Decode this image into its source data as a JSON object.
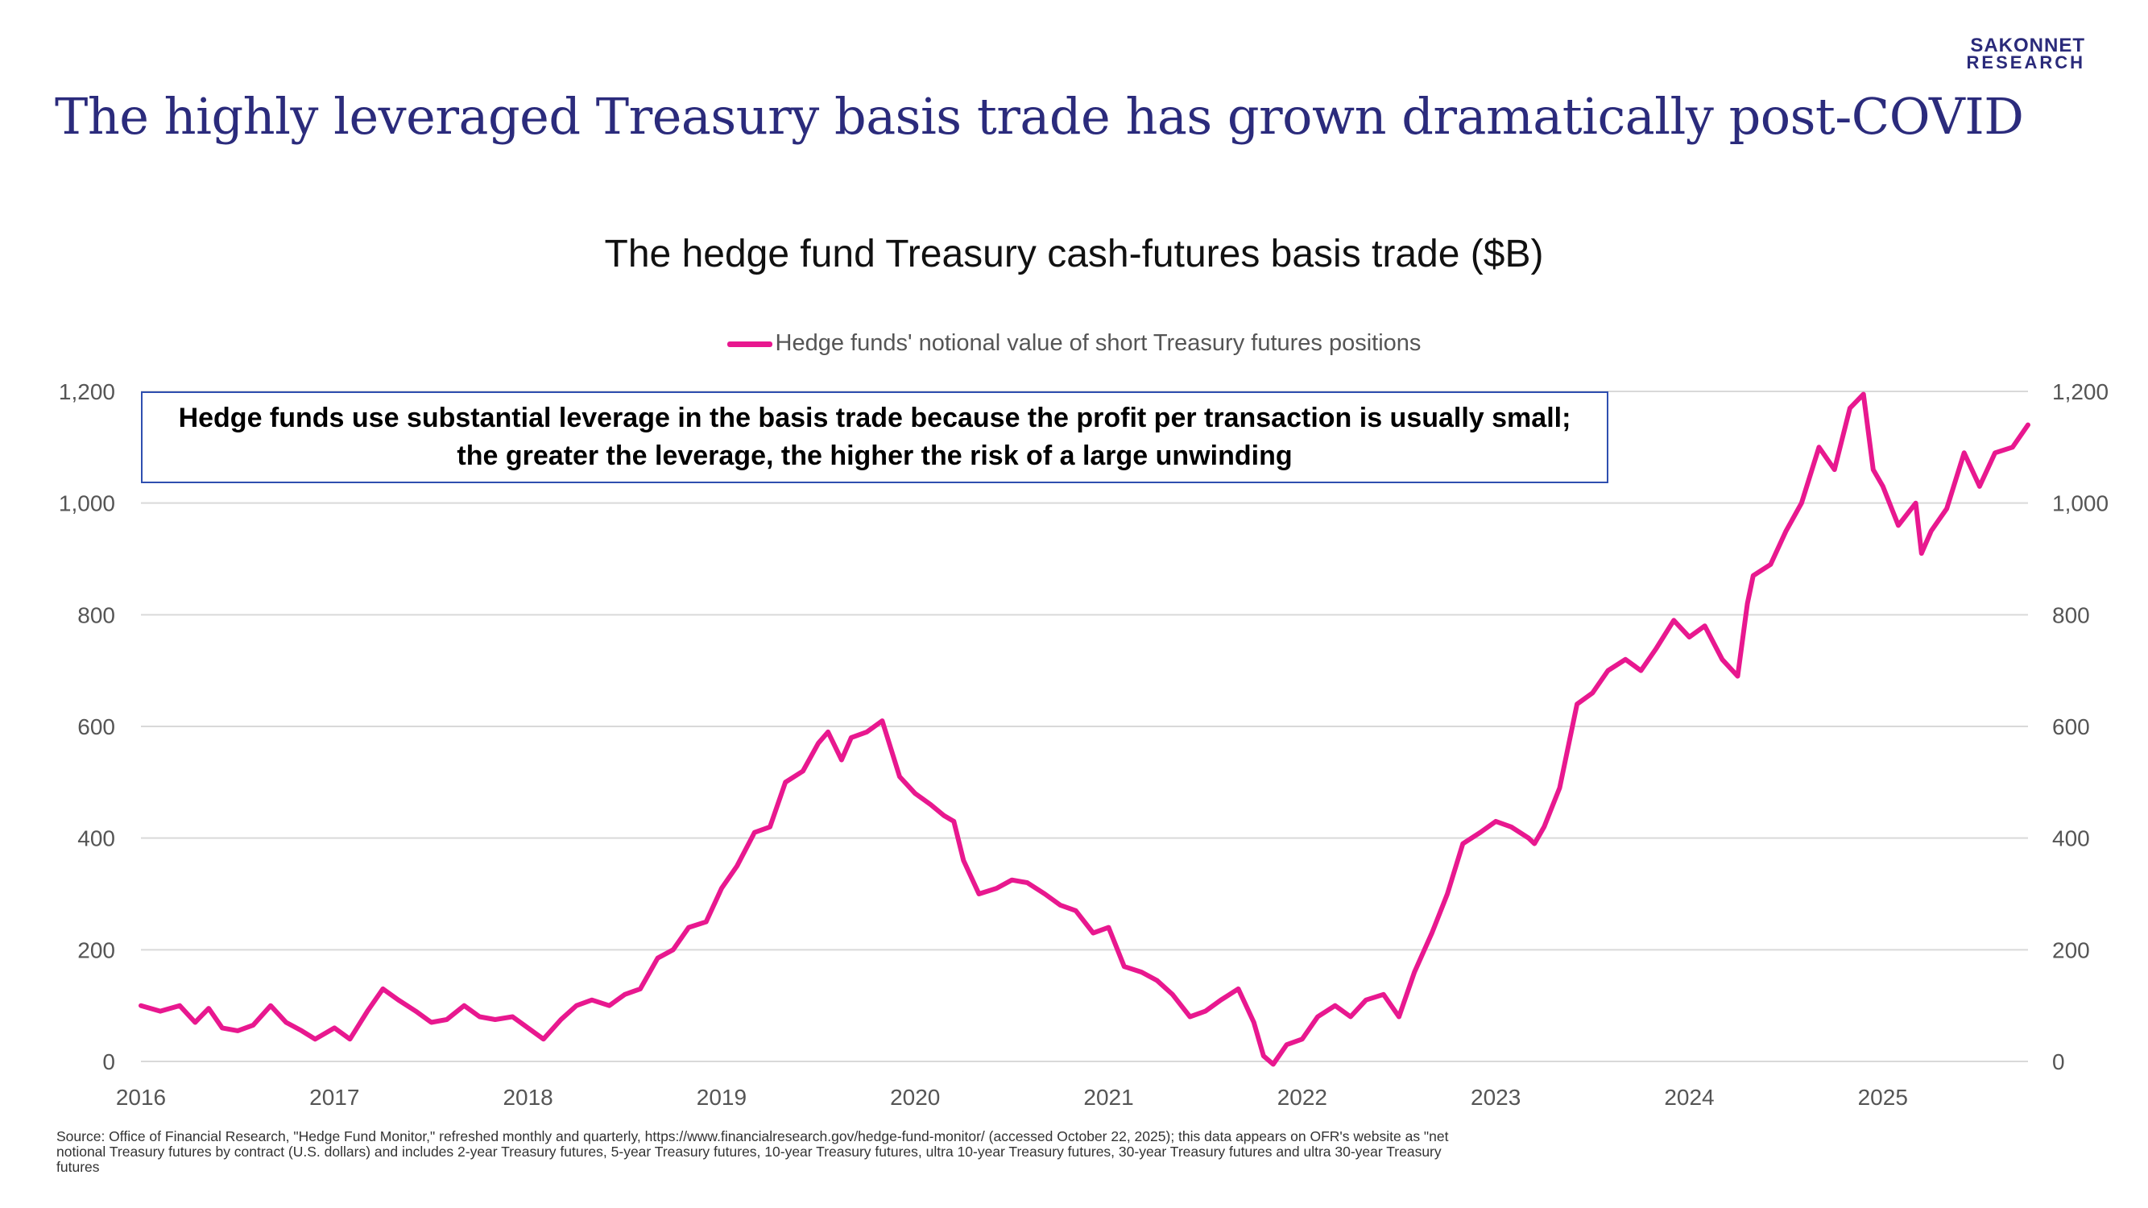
{
  "logo": {
    "line1": "SAKONNET",
    "line2": "RESEARCH"
  },
  "slide_title": "The highly leveraged Treasury basis trade has grown dramatically post-COVID",
  "callout": "Hedge funds use substantial leverage in the basis trade because the profit per transaction is usually small; the greater the leverage, the higher the risk of a large unwinding",
  "source": "Source: Office of Financial Research, \"Hedge Fund Monitor,\" refreshed monthly and quarterly, https://www.financialresearch.gov/hedge-fund-monitor/ (accessed October 22, 2025); this data appears on OFR's website as \"net notional Treasury futures by contract (U.S. dollars) and includes 2-year Treasury futures, 5-year Treasury futures, 10-year Treasury futures, ultra 10-year Treasury futures, 30-year Treasury futures and ultra 30-year Treasury futures",
  "colors": {
    "series": "#e8188f",
    "title": "#2b2b7c",
    "callout_border": "#2f4fb0",
    "grid": "#d9d9d9"
  },
  "chart_data": {
    "type": "line",
    "title": "The hedge fund Treasury cash-futures basis trade ($B)",
    "legend": "Hedge funds' notional value of short Treasury futures positions",
    "xlabel": "",
    "ylabel": "",
    "xlim": [
      2016.0,
      2025.75
    ],
    "ylim": [
      0,
      1200
    ],
    "y_ticks": [
      0,
      200,
      400,
      600,
      800,
      1000,
      1200
    ],
    "y_tick_labels": [
      "0",
      "200",
      "400",
      "600",
      "800",
      "1,000",
      "1,200"
    ],
    "x_ticks": [
      2016,
      2017,
      2018,
      2019,
      2020,
      2021,
      2022,
      2023,
      2024,
      2025
    ],
    "x_tick_labels": [
      "2016",
      "2017",
      "2018",
      "2019",
      "2020",
      "2021",
      "2022",
      "2023",
      "2024",
      "2025"
    ],
    "grid": true,
    "series": [
      {
        "name": "Hedge funds' notional value of short Treasury futures positions",
        "x": [
          2016.0,
          2016.1,
          2016.2,
          2016.28,
          2016.35,
          2016.42,
          2016.5,
          2016.58,
          2016.67,
          2016.75,
          2016.83,
          2016.9,
          2017.0,
          2017.08,
          2017.17,
          2017.25,
          2017.33,
          2017.42,
          2017.5,
          2017.58,
          2017.67,
          2017.75,
          2017.83,
          2017.92,
          2018.0,
          2018.08,
          2018.17,
          2018.25,
          2018.33,
          2018.42,
          2018.5,
          2018.58,
          2018.67,
          2018.75,
          2018.83,
          2018.92,
          2019.0,
          2019.08,
          2019.17,
          2019.25,
          2019.33,
          2019.42,
          2019.5,
          2019.55,
          2019.62,
          2019.67,
          2019.75,
          2019.83,
          2019.92,
          2020.0,
          2020.08,
          2020.15,
          2020.2,
          2020.25,
          2020.33,
          2020.42,
          2020.5,
          2020.58,
          2020.67,
          2020.75,
          2020.83,
          2020.92,
          2021.0,
          2021.08,
          2021.17,
          2021.25,
          2021.33,
          2021.42,
          2021.5,
          2021.58,
          2021.67,
          2021.75,
          2021.8,
          2021.85,
          2021.92,
          2022.0,
          2022.08,
          2022.17,
          2022.25,
          2022.33,
          2022.42,
          2022.5,
          2022.58,
          2022.67,
          2022.75,
          2022.83,
          2022.92,
          2023.0,
          2023.08,
          2023.17,
          2023.2,
          2023.25,
          2023.33,
          2023.42,
          2023.5,
          2023.58,
          2023.67,
          2023.75,
          2023.83,
          2023.92,
          2024.0,
          2024.08,
          2024.17,
          2024.25,
          2024.3,
          2024.33,
          2024.42,
          2024.5,
          2024.58,
          2024.67,
          2024.75,
          2024.83,
          2024.9,
          2024.95,
          2025.0,
          2025.08,
          2025.17,
          2025.2,
          2025.25,
          2025.33,
          2025.42,
          2025.5,
          2025.58,
          2025.67,
          2025.75
        ],
        "y": [
          100,
          90,
          100,
          70,
          95,
          60,
          55,
          65,
          100,
          70,
          55,
          40,
          60,
          40,
          90,
          130,
          110,
          90,
          70,
          75,
          100,
          80,
          75,
          80,
          60,
          40,
          75,
          100,
          110,
          100,
          120,
          130,
          185,
          200,
          240,
          250,
          310,
          350,
          410,
          420,
          500,
          520,
          570,
          590,
          540,
          580,
          590,
          610,
          510,
          480,
          460,
          440,
          430,
          360,
          300,
          310,
          325,
          320,
          300,
          280,
          270,
          230,
          240,
          170,
          160,
          145,
          120,
          80,
          90,
          110,
          130,
          70,
          10,
          -5,
          30,
          40,
          80,
          100,
          80,
          110,
          120,
          80,
          160,
          230,
          300,
          390,
          410,
          430,
          420,
          400,
          390,
          420,
          490,
          640,
          660,
          700,
          720,
          700,
          740,
          790,
          760,
          780,
          720,
          690,
          820,
          870,
          890,
          950,
          1000,
          1100,
          1060,
          1170,
          1195,
          1060,
          1030,
          960,
          1000,
          910,
          950,
          990,
          1090,
          1030,
          1090,
          1100,
          1140
        ]
      }
    ]
  }
}
